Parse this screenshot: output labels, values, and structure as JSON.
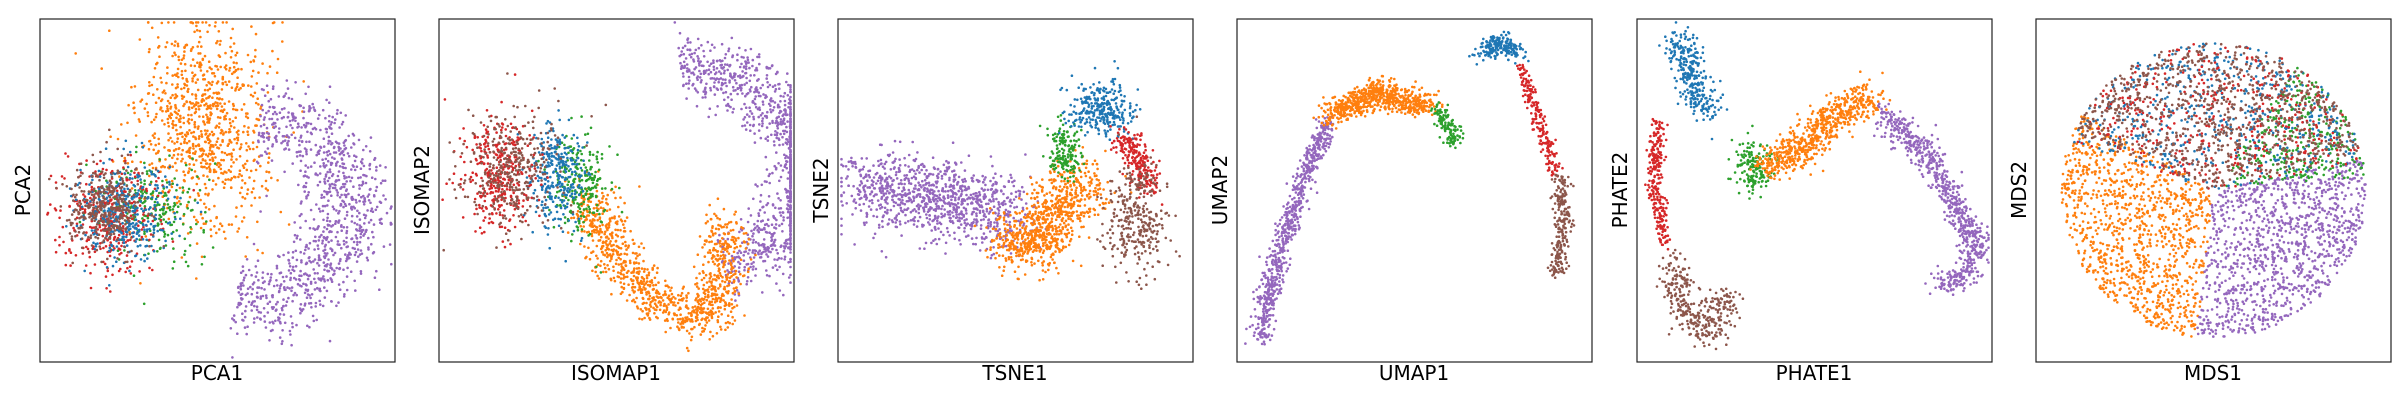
{
  "palette": {
    "blue": "#1f77b4",
    "orange": "#ff7f0e",
    "green": "#2ca02c",
    "red": "#d62728",
    "purple": "#9467bd",
    "brown": "#8c564b"
  },
  "chart_data": [
    {
      "type": "scatter",
      "title": "",
      "xlabel": "PCA1",
      "ylabel": "PCA2",
      "grid": false,
      "ticks": false,
      "xlim": [
        0,
        1
      ],
      "ylim": [
        0,
        1
      ],
      "clusters": [
        {
          "color": "orange",
          "kind": "blob",
          "cx": 0.46,
          "cy": 0.68,
          "sx": 0.09,
          "sy": 0.15,
          "n": 900
        },
        {
          "color": "purple",
          "kind": "arc",
          "cx": 0.6,
          "cy": 0.45,
          "r": 0.27,
          "a0": -1.75,
          "a1": 1.5,
          "w": 0.06,
          "n": 1000
        },
        {
          "color": "green",
          "kind": "blob",
          "cx": 0.32,
          "cy": 0.45,
          "sx": 0.07,
          "sy": 0.07,
          "n": 220
        },
        {
          "color": "red",
          "kind": "blob",
          "cx": 0.2,
          "cy": 0.42,
          "sx": 0.07,
          "sy": 0.08,
          "n": 350
        },
        {
          "color": "blue",
          "kind": "blob",
          "cx": 0.24,
          "cy": 0.44,
          "sx": 0.07,
          "sy": 0.07,
          "n": 350
        },
        {
          "color": "brown",
          "kind": "blob",
          "cx": 0.18,
          "cy": 0.45,
          "sx": 0.05,
          "sy": 0.06,
          "n": 350
        }
      ]
    },
    {
      "type": "scatter",
      "title": "",
      "xlabel": "ISOMAP1",
      "ylabel": "ISOMAP2",
      "grid": false,
      "ticks": false,
      "xlim": [
        0,
        1
      ],
      "ylim": [
        0,
        1
      ],
      "clusters": [
        {
          "color": "purple",
          "kind": "arc",
          "cx": 0.72,
          "cy": 0.56,
          "r": 0.3,
          "a0": -1.3,
          "a1": 1.7,
          "w": 0.05,
          "n": 1000
        },
        {
          "color": "orange",
          "kind": "path",
          "pts": [
            [
              0.42,
              0.48
            ],
            [
              0.5,
              0.3
            ],
            [
              0.62,
              0.18
            ],
            [
              0.74,
              0.12
            ],
            [
              0.8,
              0.22
            ],
            [
              0.8,
              0.4
            ]
          ],
          "w": 0.035,
          "n": 1000
        },
        {
          "color": "green",
          "kind": "blob",
          "cx": 0.4,
          "cy": 0.52,
          "sx": 0.04,
          "sy": 0.07,
          "n": 220
        },
        {
          "color": "blue",
          "kind": "blob",
          "cx": 0.33,
          "cy": 0.55,
          "sx": 0.04,
          "sy": 0.08,
          "n": 300
        },
        {
          "color": "red",
          "kind": "blob",
          "cx": 0.17,
          "cy": 0.55,
          "sx": 0.05,
          "sy": 0.08,
          "n": 350
        },
        {
          "color": "brown",
          "kind": "blob",
          "cx": 0.2,
          "cy": 0.56,
          "sx": 0.07,
          "sy": 0.09,
          "n": 350
        }
      ]
    },
    {
      "type": "scatter",
      "title": "",
      "xlabel": "TSNE1",
      "ylabel": "TSNE2",
      "grid": false,
      "ticks": false,
      "xlim": [
        0,
        1
      ],
      "ylim": [
        0,
        1
      ],
      "clusters": [
        {
          "color": "purple",
          "kind": "path",
          "pts": [
            [
              0.05,
              0.52
            ],
            [
              0.15,
              0.5
            ],
            [
              0.3,
              0.47
            ],
            [
              0.42,
              0.45
            ],
            [
              0.5,
              0.42
            ]
          ],
          "w": 0.055,
          "n": 1000
        },
        {
          "color": "orange",
          "kind": "path",
          "pts": [
            [
              0.48,
              0.36
            ],
            [
              0.55,
              0.33
            ],
            [
              0.6,
              0.42
            ],
            [
              0.65,
              0.48
            ],
            [
              0.7,
              0.52
            ]
          ],
          "w": 0.045,
          "n": 800
        },
        {
          "color": "green",
          "kind": "blob",
          "cx": 0.64,
          "cy": 0.61,
          "sx": 0.025,
          "sy": 0.04,
          "n": 160
        },
        {
          "color": "blue",
          "kind": "blob",
          "cx": 0.74,
          "cy": 0.74,
          "sx": 0.045,
          "sy": 0.04,
          "n": 300
        },
        {
          "color": "red",
          "kind": "path",
          "pts": [
            [
              0.8,
              0.66
            ],
            [
              0.85,
              0.58
            ],
            [
              0.88,
              0.5
            ]
          ],
          "w": 0.02,
          "n": 220
        },
        {
          "color": "brown",
          "kind": "blob",
          "cx": 0.84,
          "cy": 0.41,
          "sx": 0.045,
          "sy": 0.08,
          "n": 320
        }
      ]
    },
    {
      "type": "scatter",
      "title": "",
      "xlabel": "UMAP1",
      "ylabel": "UMAP2",
      "grid": false,
      "ticks": false,
      "xlim": [
        0,
        1
      ],
      "ylim": [
        0,
        1
      ],
      "clusters": [
        {
          "color": "purple",
          "kind": "path",
          "pts": [
            [
              0.07,
              0.07
            ],
            [
              0.1,
              0.26
            ],
            [
              0.16,
              0.45
            ],
            [
              0.22,
              0.61
            ],
            [
              0.26,
              0.7
            ]
          ],
          "w": 0.015,
          "n": 700
        },
        {
          "color": "orange",
          "kind": "path",
          "pts": [
            [
              0.26,
              0.72
            ],
            [
              0.33,
              0.75
            ],
            [
              0.4,
              0.79
            ],
            [
              0.47,
              0.76
            ],
            [
              0.54,
              0.75
            ]
          ],
          "w": 0.02,
          "n": 700
        },
        {
          "color": "green",
          "kind": "path",
          "pts": [
            [
              0.56,
              0.74
            ],
            [
              0.6,
              0.68
            ],
            [
              0.62,
              0.63
            ]
          ],
          "w": 0.012,
          "n": 120
        },
        {
          "color": "blue",
          "kind": "path",
          "pts": [
            [
              0.69,
              0.9
            ],
            [
              0.74,
              0.93
            ],
            [
              0.79,
              0.9
            ]
          ],
          "w": 0.015,
          "n": 200
        },
        {
          "color": "red",
          "kind": "path",
          "pts": [
            [
              0.8,
              0.86
            ],
            [
              0.85,
              0.7
            ],
            [
              0.9,
              0.55
            ]
          ],
          "w": 0.01,
          "n": 200
        },
        {
          "color": "brown",
          "kind": "path",
          "pts": [
            [
              0.91,
              0.55
            ],
            [
              0.92,
              0.4
            ],
            [
              0.9,
              0.25
            ]
          ],
          "w": 0.012,
          "n": 240
        }
      ]
    },
    {
      "type": "scatter",
      "title": "",
      "xlabel": "PHATE1",
      "ylabel": "PHATE2",
      "grid": false,
      "ticks": false,
      "xlim": [
        0,
        1
      ],
      "ylim": [
        0,
        1
      ],
      "clusters": [
        {
          "color": "blue",
          "kind": "path",
          "pts": [
            [
              0.12,
              0.95
            ],
            [
              0.16,
              0.82
            ],
            [
              0.2,
              0.72
            ]
          ],
          "w": 0.025,
          "n": 300
        },
        {
          "color": "red",
          "kind": "path",
          "pts": [
            [
              0.06,
              0.7
            ],
            [
              0.05,
              0.5
            ],
            [
              0.08,
              0.35
            ]
          ],
          "w": 0.012,
          "n": 250
        },
        {
          "color": "brown",
          "kind": "path",
          "pts": [
            [
              0.1,
              0.3
            ],
            [
              0.14,
              0.14
            ],
            [
              0.2,
              0.08
            ],
            [
              0.26,
              0.2
            ]
          ],
          "w": 0.025,
          "n": 320
        },
        {
          "color": "green",
          "kind": "blob",
          "cx": 0.33,
          "cy": 0.57,
          "sx": 0.025,
          "sy": 0.04,
          "n": 160
        },
        {
          "color": "orange",
          "kind": "path",
          "pts": [
            [
              0.36,
              0.57
            ],
            [
              0.46,
              0.62
            ],
            [
              0.56,
              0.72
            ],
            [
              0.64,
              0.76
            ],
            [
              0.66,
              0.78
            ]
          ],
          "w": 0.025,
          "n": 650
        },
        {
          "color": "purple",
          "kind": "path",
          "pts": [
            [
              0.7,
              0.72
            ],
            [
              0.82,
              0.6
            ],
            [
              0.9,
              0.45
            ],
            [
              0.96,
              0.34
            ],
            [
              0.93,
              0.25
            ],
            [
              0.85,
              0.22
            ]
          ],
          "w": 0.02,
          "n": 700
        }
      ]
    },
    {
      "type": "scatter",
      "title": "",
      "xlabel": "MDS1",
      "ylabel": "MDS2",
      "grid": false,
      "ticks": false,
      "xlim": [
        0,
        1
      ],
      "ylim": [
        0,
        1
      ],
      "clusters": [
        {
          "color": "orange",
          "kind": "disk",
          "cx": 0.5,
          "cy": 0.5,
          "r": 0.43,
          "tmin": 2.6,
          "tmax": 4.6,
          "n": 1100
        },
        {
          "color": "purple",
          "kind": "disk",
          "cx": 0.5,
          "cy": 0.5,
          "r": 0.43,
          "tmin": 4.6,
          "tmax": 6.5,
          "n": 1100
        },
        {
          "color": "green",
          "kind": "disk",
          "cx": 0.5,
          "cy": 0.5,
          "r": 0.43,
          "tmin": 0.1,
          "tmax": 1.0,
          "n": 300
        },
        {
          "color": "blue",
          "kind": "disk",
          "cx": 0.5,
          "cy": 0.5,
          "r": 0.43,
          "tmin": 0.2,
          "tmax": 2.8,
          "n": 500
        },
        {
          "color": "red",
          "kind": "disk",
          "cx": 0.5,
          "cy": 0.5,
          "r": 0.43,
          "tmin": 0.2,
          "tmax": 2.8,
          "n": 400
        },
        {
          "color": "brown",
          "kind": "disk",
          "cx": 0.5,
          "cy": 0.5,
          "r": 0.43,
          "tmin": 0.25,
          "tmax": 2.75,
          "n": 900
        }
      ]
    }
  ]
}
